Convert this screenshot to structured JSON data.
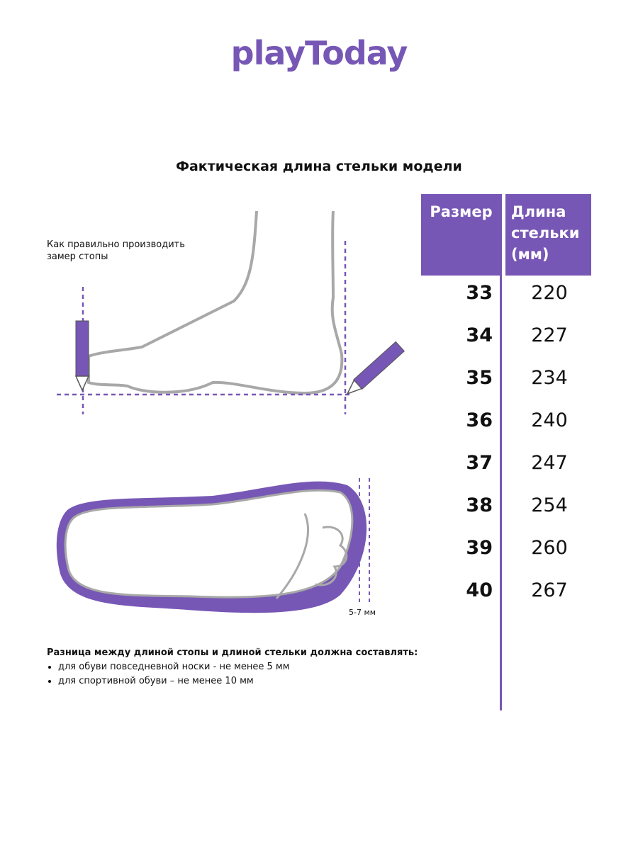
{
  "logo": "playToday",
  "title": "Фактическая длина стельки модели",
  "measure_hint": [
    "Как правильно производить",
    "замер стопы"
  ],
  "table": {
    "headers": [
      "Размер",
      "Длина стельки (мм)"
    ],
    "rows": [
      {
        "size": "33",
        "length": "220"
      },
      {
        "size": "34",
        "length": "227"
      },
      {
        "size": "35",
        "length": "234"
      },
      {
        "size": "36",
        "length": "240"
      },
      {
        "size": "37",
        "length": "247"
      },
      {
        "size": "38",
        "length": "254"
      },
      {
        "size": "39",
        "length": "260"
      },
      {
        "size": "40",
        "length": "267"
      }
    ]
  },
  "gap_label": "5-7 мм",
  "note": {
    "heading": "Разница между длиной стопы и длиной стельки должна составлять:",
    "items": [
      "для обуви повседневной носки -  не менее 5 мм",
      "для спортивной обуви – не менее 10 мм"
    ]
  },
  "colors": {
    "accent": "#7757b5",
    "outline": "#a8a8a8"
  }
}
